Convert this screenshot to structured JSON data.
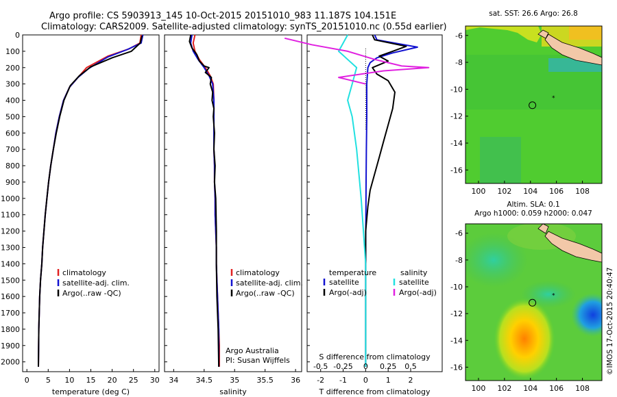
{
  "header": {
    "title_line1": "Argo profile: CS 5903913_145 10-Oct-2015 20151010_983 11.187S 104.151E",
    "title_line2": "Climatology: CARS2009. Satellite-adjusted climatology: synTS_20151010.nc (0.55d earlier)"
  },
  "colors": {
    "climatology": "#e02020",
    "satellite": "#1010d0",
    "argo": "#000000",
    "sat_salinity": "#20e0e0",
    "argo_salinity_adj": "#e020e0",
    "land": "#f2c8a8"
  },
  "chart_data": [
    {
      "type": "line",
      "id": "temperature",
      "xlabel": "temperature (deg C)",
      "ylabel": "",
      "xlim": [
        -1,
        31
      ],
      "ylim": [
        2060,
        0
      ],
      "xticks": [
        0,
        5,
        10,
        15,
        20,
        25,
        30
      ],
      "yticks": [
        0,
        100,
        200,
        300,
        400,
        500,
        600,
        700,
        800,
        900,
        1000,
        1100,
        1200,
        1300,
        1400,
        1500,
        1600,
        1700,
        1800,
        1900,
        2000
      ],
      "legend": [
        "climatology",
        "satellite-adj. clim.",
        "Argo(..raw -QC)"
      ],
      "series": [
        {
          "name": "climatology",
          "color": "#e02020",
          "x": [
            26.8,
            26.5,
            24,
            19,
            14,
            12,
            10,
            8.6,
            7.6,
            6.8,
            6.2,
            5.6,
            5.1,
            4.7,
            4.3,
            4.0,
            3.7,
            3.5,
            3.2,
            3.0,
            2.8,
            2.7
          ],
          "y": [
            0,
            50,
            85,
            130,
            200,
            260,
            320,
            400,
            500,
            600,
            700,
            800,
            900,
            1000,
            1100,
            1200,
            1300,
            1400,
            1500,
            1600,
            1800,
            2030
          ]
        },
        {
          "name": "satellite-adj. clim.",
          "color": "#1010d0",
          "x": [
            27.2,
            26.8,
            23.5,
            19,
            14.5,
            12,
            10,
            8.6,
            7.6,
            6.8,
            6.2,
            5.6,
            5.1,
            4.7,
            4.3,
            4.0,
            3.7,
            3.5,
            3.2,
            3.0,
            2.8,
            2.7
          ],
          "y": [
            0,
            50,
            90,
            135,
            205,
            260,
            320,
            400,
            500,
            600,
            700,
            800,
            900,
            1000,
            1100,
            1200,
            1300,
            1400,
            1500,
            1600,
            1800,
            2030
          ]
        },
        {
          "name": "Argo(..raw -QC)",
          "color": "#000000",
          "x": [
            27.0,
            26.6,
            24.5,
            20,
            15,
            12.3,
            10.2,
            8.7,
            7.7,
            6.9,
            6.2,
            5.6,
            5.1,
            4.7,
            4.3,
            4.0,
            3.7,
            3.5,
            3.2,
            3.0,
            2.8,
            2.7
          ],
          "y": [
            5,
            50,
            100,
            140,
            195,
            250,
            310,
            400,
            500,
            600,
            700,
            800,
            900,
            1000,
            1100,
            1200,
            1300,
            1400,
            1500,
            1600,
            1800,
            2030
          ]
        }
      ]
    },
    {
      "type": "line",
      "id": "salinity",
      "xlabel": "salinity",
      "xlim": [
        33.85,
        36.1
      ],
      "ylim": [
        2060,
        0
      ],
      "xticks": [
        34,
        34.5,
        35,
        35.5,
        36
      ],
      "legend": [
        "climatology",
        "satellite-adj. clim.",
        "Argo(..raw -QC)"
      ],
      "annotations": [
        "Argo Australia",
        "PI: Susan Wijffels"
      ],
      "series": [
        {
          "name": "climatology",
          "color": "#e02020",
          "x": [
            34.35,
            34.32,
            34.35,
            34.42,
            34.52,
            34.6,
            34.65,
            34.66,
            34.66,
            34.66,
            34.66,
            34.67,
            34.67,
            34.68,
            34.68,
            34.69,
            34.7,
            34.7,
            34.71,
            34.72,
            34.73,
            34.74,
            34.75,
            34.75
          ],
          "y": [
            0,
            50,
            100,
            150,
            200,
            250,
            300,
            400,
            500,
            600,
            700,
            800,
            900,
            1000,
            1100,
            1200,
            1300,
            1400,
            1500,
            1600,
            1700,
            1800,
            1900,
            2030
          ]
        },
        {
          "name": "satellite-adj. clim.",
          "color": "#1010d0",
          "x": [
            34.3,
            34.28,
            34.32,
            34.4,
            34.5,
            34.58,
            34.64,
            34.66,
            34.66,
            34.66,
            34.66,
            34.67,
            34.67,
            34.68,
            34.68,
            34.69,
            34.7,
            34.7,
            34.71,
            34.72,
            34.73,
            34.74,
            34.74
          ],
          "y": [
            0,
            50,
            100,
            150,
            200,
            250,
            300,
            400,
            500,
            600,
            700,
            800,
            900,
            1000,
            1100,
            1200,
            1300,
            1400,
            1500,
            1600,
            1700,
            1800,
            2030
          ]
        },
        {
          "name": "Argo(..raw -QC)",
          "color": "#000000",
          "x": [
            34.28,
            34.26,
            34.3,
            34.38,
            34.42,
            34.5,
            34.58,
            34.52,
            34.62,
            34.6,
            34.64,
            34.63,
            34.66,
            34.65,
            34.67,
            34.66,
            34.68,
            34.67,
            34.69,
            34.7,
            34.7,
            34.71,
            34.72,
            34.73,
            34.74
          ],
          "y": [
            0,
            40,
            80,
            120,
            160,
            190,
            200,
            230,
            260,
            300,
            350,
            400,
            450,
            500,
            600,
            700,
            800,
            900,
            1000,
            1200,
            1400,
            1600,
            1700,
            1800,
            2030
          ]
        }
      ]
    },
    {
      "type": "line",
      "id": "difference",
      "xlabel": "T difference from climatology",
      "xlabel_top": "S difference from climatology",
      "xlim": [
        -2.6,
        3.4
      ],
      "ylim": [
        2060,
        0
      ],
      "xticks": [
        -2,
        -1,
        0,
        1,
        2
      ],
      "xticks_top": [
        "-0.5",
        "-0.25",
        "0",
        "0.25",
        "0.5"
      ],
      "legend_temperature": {
        "title": "temperature",
        "items": [
          "satellite",
          "Argo(-adj)"
        ]
      },
      "legend_salinity": {
        "title": "salinity",
        "items": [
          "satellite",
          "Argo(-adj)"
        ]
      },
      "series": [
        {
          "name": "temperature satellite",
          "color": "#1010d0",
          "x": [
            0.4,
            0.5,
            2.3,
            1.2,
            0.5,
            0.2,
            0.1,
            0.05,
            0.05,
            0.03,
            0.02,
            0.01,
            0.0,
            0.0,
            0.0
          ],
          "y": [
            0,
            30,
            75,
            110,
            140,
            170,
            200,
            300,
            500,
            700,
            900,
            1100,
            1300,
            1600,
            2030
          ]
        },
        {
          "name": "temperature Argo(-adj)",
          "color": "#000000",
          "x": [
            0.3,
            0.4,
            1.8,
            1.2,
            0.6,
            1.0,
            0.3,
            0.5,
            1.0,
            1.3,
            1.2,
            1.0,
            0.8,
            0.6,
            0.4,
            0.2,
            0.1,
            0.0,
            0.0,
            0.0
          ],
          "y": [
            0,
            30,
            70,
            100,
            130,
            160,
            200,
            240,
            280,
            350,
            450,
            550,
            650,
            750,
            850,
            950,
            1050,
            1200,
            1500,
            2030
          ]
        },
        {
          "name": "salinity satellite",
          "color": "#20e0e0",
          "x": [
            -0.2,
            -0.3,
            -0.1,
            -0.15,
            -0.2,
            -0.15,
            -0.1,
            -0.05,
            0.0,
            0.0
          ],
          "y": [
            0,
            100,
            200,
            300,
            400,
            500,
            700,
            1000,
            1400,
            2030
          ]
        },
        {
          "name": "salinity Argo(-adj)",
          "color": "#e020e0",
          "x": [
            -0.9,
            -0.6,
            -0.2,
            0.1,
            0.4,
            0.7,
            0.2,
            -0.3,
            0.0
          ],
          "y": [
            20,
            60,
            100,
            150,
            190,
            200,
            220,
            260,
            300
          ]
        }
      ]
    },
    {
      "type": "heatmap",
      "id": "sst-map",
      "title": "sat. SST: 26.6  Argo: 26.8",
      "xticks": [
        100,
        102,
        104,
        106,
        108
      ],
      "yticks": [
        -6,
        -8,
        -10,
        -12,
        -14,
        -16
      ],
      "xlim": [
        99,
        109.5
      ],
      "ylim": [
        -17,
        -5.3
      ],
      "float_position": {
        "lon": 104.15,
        "lat": -11.19
      }
    },
    {
      "type": "heatmap",
      "id": "sla-map",
      "title": "Altim. SLA: 0.1",
      "subtitle": "Argo h1000: 0.059  h2000: 0.047",
      "xticks": [
        100,
        102,
        104,
        106,
        108
      ],
      "yticks": [
        -6,
        -8,
        -10,
        -12,
        -14,
        -16
      ],
      "xlim": [
        99,
        109.5
      ],
      "ylim": [
        -17,
        -5.3
      ],
      "float_position": {
        "lon": 104.15,
        "lat": -11.19
      }
    }
  ],
  "footer": {
    "stamp": "©IMOS 17-Oct-2015 20:40:47"
  }
}
